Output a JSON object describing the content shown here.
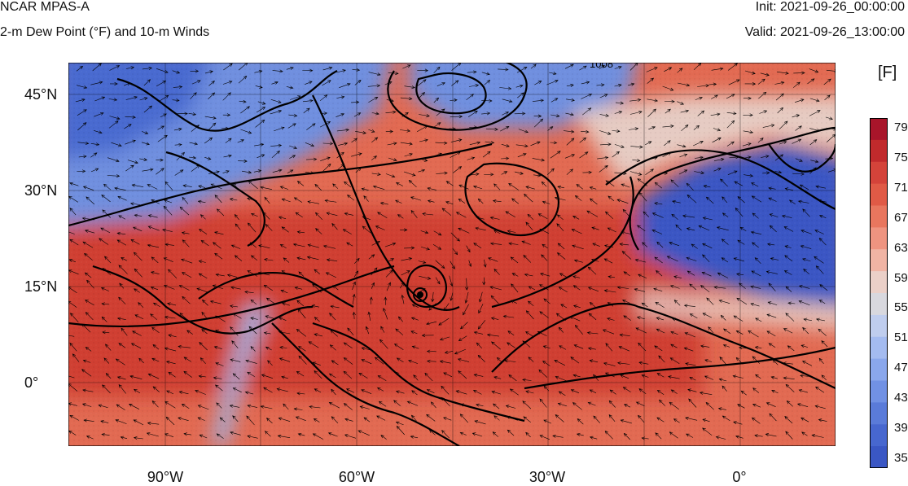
{
  "header": {
    "title": "NCAR MPAS-A",
    "subtitle": "2-m Dew Point (°F) and 10-m Winds",
    "init": "Init: 2021-09-26_00:00:00",
    "valid": "Valid: 2021-09-26_13:00:00"
  },
  "map": {
    "lat_labels": [
      "45°N",
      "30°N",
      "15°N",
      "0°"
    ],
    "lon_labels": [
      "90°W",
      "60°W",
      "30°W",
      "0°"
    ],
    "contour_label": "1008",
    "colors": {
      "cold": "#3a57c4",
      "cool": "#7fa0e4",
      "neutral": "#e7d6cf",
      "warm": "#e26a52",
      "hot": "#c9302a"
    }
  },
  "colorbar": {
    "units": "[F]",
    "labels": [
      "79",
      "75",
      "71",
      "67",
      "63",
      "59",
      "55",
      "51",
      "47",
      "43",
      "39",
      "35"
    ]
  }
}
